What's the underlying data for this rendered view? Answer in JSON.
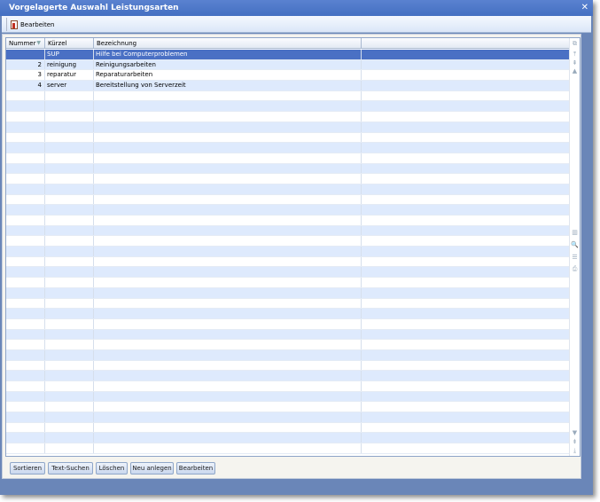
{
  "window": {
    "title": "Vorgelagerte Auswahl Leistungsarten",
    "close_icon": "close-icon"
  },
  "toolbar": {
    "edit_label": "Bearbeiten",
    "edit_icon": "edit-document-icon"
  },
  "grid": {
    "columns": [
      "Nummer",
      "Kürzel",
      "Bezeichnung",
      ""
    ],
    "sorted_column": "Nummer",
    "rows": [
      {
        "nummer": "",
        "kuerzel": "SUP",
        "bezeichnung": "Hilfe bei Computerproblemen",
        "selected": true,
        "row_icon": "edit-pencil-icon"
      },
      {
        "nummer": "2",
        "kuerzel": "reinigung",
        "bezeichnung": "Reinigungsarbeiten"
      },
      {
        "nummer": "3",
        "kuerzel": "reparatur",
        "bezeichnung": "Reparaturarbeiten"
      },
      {
        "nummer": "4",
        "kuerzel": "server",
        "bezeichnung": "Bereitstellung von Serverzeit"
      }
    ],
    "side_icons": [
      "column-chooser-icon",
      "first-icon",
      "previous-page-icon",
      "previous-icon",
      "columns-icon",
      "search-icon",
      "filter-icon",
      "print-icon",
      "next-icon",
      "next-page-icon",
      "last-icon"
    ]
  },
  "buttons": {
    "sort": "Sortieren",
    "text_search": "Text-Suchen",
    "delete": "Löschen",
    "new": "Neu anlegen",
    "edit": "Bearbeiten"
  },
  "colors": {
    "title_bar": "#4a72c4",
    "selection": "#4a70c4",
    "alt_row": "#deeafd"
  }
}
